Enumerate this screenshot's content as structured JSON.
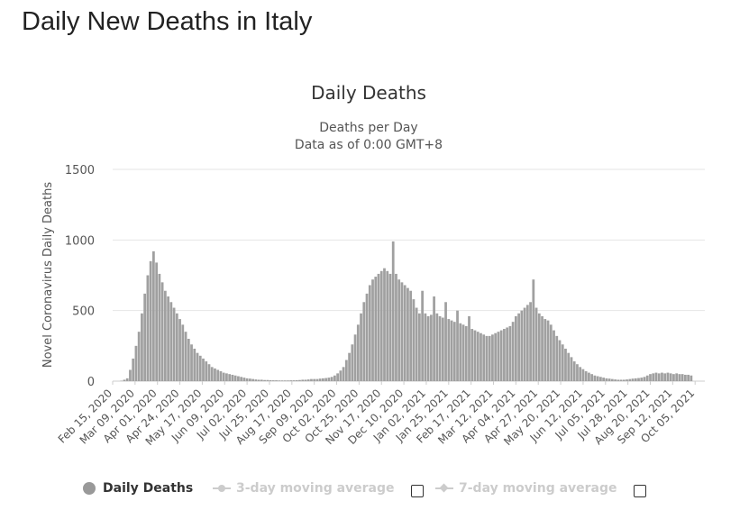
{
  "page": {
    "title": "Daily New Deaths in Italy"
  },
  "colors": {
    "bar": "#a0a0a0",
    "bar_stroke": "#8c8c8c",
    "legend_active": "#333333",
    "legend_inactive": "#cccccc",
    "grid": "#e6e6e6",
    "text": "#333333",
    "axis_text": "#555555"
  },
  "chart_data": {
    "type": "bar",
    "title": "Daily Deaths",
    "subtitle_lines": [
      "Deaths per Day",
      "Data as of 0:00 GMT+8"
    ],
    "xlabel": "",
    "ylabel": "Novel Coronavirus Daily Deaths",
    "ylim": [
      0,
      1500
    ],
    "yticks": [
      0,
      500,
      1000,
      1500
    ],
    "grid": true,
    "x_range": [
      "Feb 15, 2020",
      "Oct 15, 2021"
    ],
    "tick_labels": [
      "Feb 15, 2020",
      "Mar 09, 2020",
      "Apr 01, 2020",
      "Apr 24, 2020",
      "May 17, 2020",
      "Jun 09, 2020",
      "Jul 02, 2020",
      "Jul 25, 2020",
      "Aug 17, 2020",
      "Sep 09, 2020",
      "Oct 02, 2020",
      "Oct 25, 2020",
      "Nov 17, 2020",
      "Dec 10, 2020",
      "Jan 02, 2021",
      "Jan 25, 2021",
      "Feb 17, 2021",
      "Mar 12, 2021",
      "Apr 04, 2021",
      "Apr 27, 2021",
      "May 20, 2021",
      "Jun 12, 2021",
      "Jul 05, 2021",
      "Jul 28, 2021",
      "Aug 20, 2021",
      "Sep 12, 2021",
      "Oct 05, 2021"
    ],
    "series": [
      {
        "name": "Daily Deaths",
        "note": "Approximate daily values read from the chart, sampled every 3 days from Feb 15, 2020",
        "start_date": "2020-02-15",
        "step_days": 3,
        "values": [
          0,
          0,
          0,
          3,
          10,
          20,
          80,
          160,
          250,
          350,
          480,
          620,
          750,
          850,
          920,
          840,
          760,
          700,
          640,
          600,
          560,
          520,
          480,
          440,
          400,
          350,
          300,
          260,
          230,
          200,
          180,
          160,
          140,
          120,
          100,
          90,
          80,
          70,
          60,
          55,
          50,
          45,
          40,
          35,
          30,
          25,
          20,
          18,
          15,
          12,
          10,
          10,
          8,
          8,
          7,
          6,
          6,
          5,
          5,
          5,
          5,
          6,
          6,
          7,
          8,
          10,
          10,
          12,
          15,
          15,
          15,
          18,
          20,
          22,
          25,
          30,
          40,
          55,
          75,
          100,
          150,
          200,
          260,
          330,
          400,
          480,
          560,
          620,
          680,
          720,
          740,
          760,
          780,
          800,
          780,
          760,
          990,
          760,
          720,
          700,
          680,
          660,
          640,
          580,
          520,
          480,
          640,
          480,
          460,
          470,
          600,
          480,
          460,
          450,
          560,
          440,
          430,
          420,
          500,
          410,
          400,
          390,
          460,
          370,
          360,
          350,
          340,
          330,
          320,
          320,
          330,
          340,
          350,
          360,
          370,
          380,
          390,
          420,
          460,
          480,
          500,
          520,
          540,
          560,
          720,
          520,
          480,
          460,
          440,
          430,
          400,
          360,
          320,
          290,
          260,
          230,
          200,
          170,
          140,
          120,
          100,
          85,
          70,
          60,
          50,
          40,
          35,
          30,
          25,
          20,
          18,
          15,
          12,
          10,
          10,
          10,
          12,
          15,
          18,
          20,
          22,
          25,
          30,
          40,
          50,
          55,
          60,
          55,
          60,
          55,
          60,
          55,
          50,
          55,
          50,
          50,
          45,
          45,
          40
        ]
      }
    ],
    "legend": [
      {
        "name": "Daily Deaths",
        "enabled": true
      },
      {
        "name": "3-day moving average",
        "enabled": false
      },
      {
        "name": "7-day moving average",
        "enabled": false
      }
    ]
  }
}
